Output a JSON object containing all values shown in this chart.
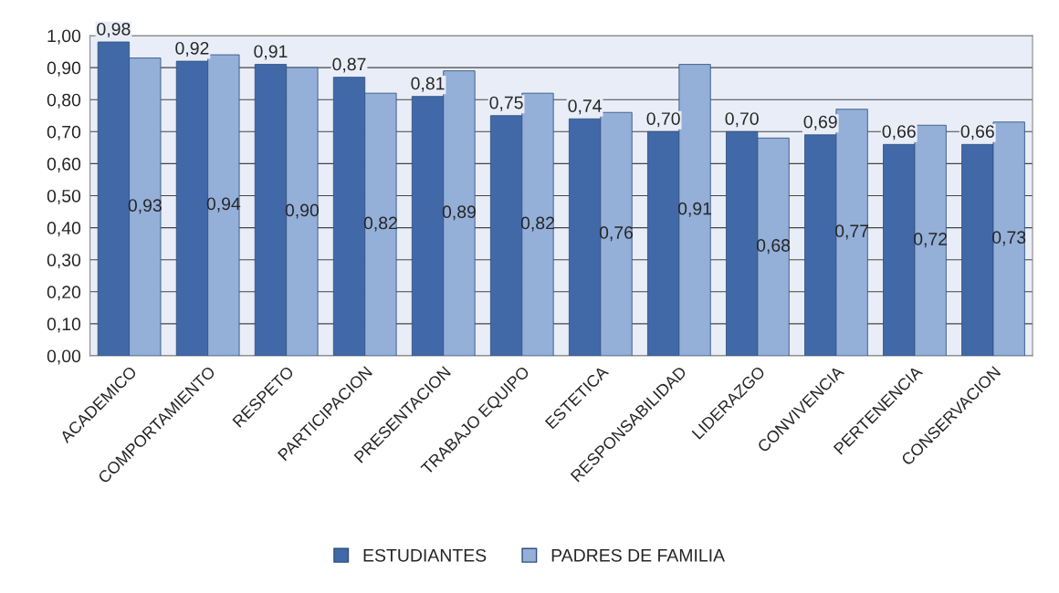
{
  "chart_data": {
    "type": "bar",
    "categories": [
      "ACADEMICO",
      "COMPORTAMIENTO",
      "RESPETO",
      "PARTICIPACION",
      "PRESENTACION",
      "TRABAJO EQUIPO",
      "ESTETICA",
      "RESPONSABILIDAD",
      "LIDERAZGO",
      "CONVIVENCIA",
      "PERTENENCIA",
      "CONSERVACION"
    ],
    "series": [
      {
        "name": "ESTUDIANTES",
        "color": "#4169a8",
        "values": [
          0.98,
          0.92,
          0.91,
          0.87,
          0.81,
          0.75,
          0.74,
          0.7,
          0.7,
          0.69,
          0.66,
          0.66
        ],
        "value_labels": [
          "0,98",
          "0,92",
          "0,91",
          "0,87",
          "0,81",
          "0,75",
          "0,74",
          "0,70",
          "0,70",
          "0,69",
          "0,66",
          "0,66"
        ]
      },
      {
        "name": "PADRES DE FAMILIA",
        "color": "#94afd8",
        "values": [
          0.93,
          0.94,
          0.9,
          0.82,
          0.89,
          0.82,
          0.76,
          0.91,
          0.68,
          0.77,
          0.72,
          0.73
        ],
        "value_labels": [
          "0,93",
          "0,94",
          "0,90",
          "0,82",
          "0,89",
          "0,82",
          "0,76",
          "0,91",
          "0,68",
          "0,77",
          "0,72",
          "0,73"
        ]
      }
    ],
    "ylim": [
      0,
      1.0
    ],
    "yticks": [
      {
        "value": 0,
        "label": "0,00"
      },
      {
        "value": 0.1,
        "label": "0,10"
      },
      {
        "value": 0.2,
        "label": "0,20"
      },
      {
        "value": 0.3,
        "label": "0,30"
      },
      {
        "value": 0.4,
        "label": "0,40"
      },
      {
        "value": 0.5,
        "label": "0,50"
      },
      {
        "value": 0.6,
        "label": "0,60"
      },
      {
        "value": 0.7,
        "label": "0,70"
      },
      {
        "value": 0.8,
        "label": "0,80"
      },
      {
        "value": 0.9,
        "label": "0,90"
      },
      {
        "value": 1.0,
        "label": "1,00"
      }
    ],
    "grid": "y",
    "legend": "bottom"
  }
}
